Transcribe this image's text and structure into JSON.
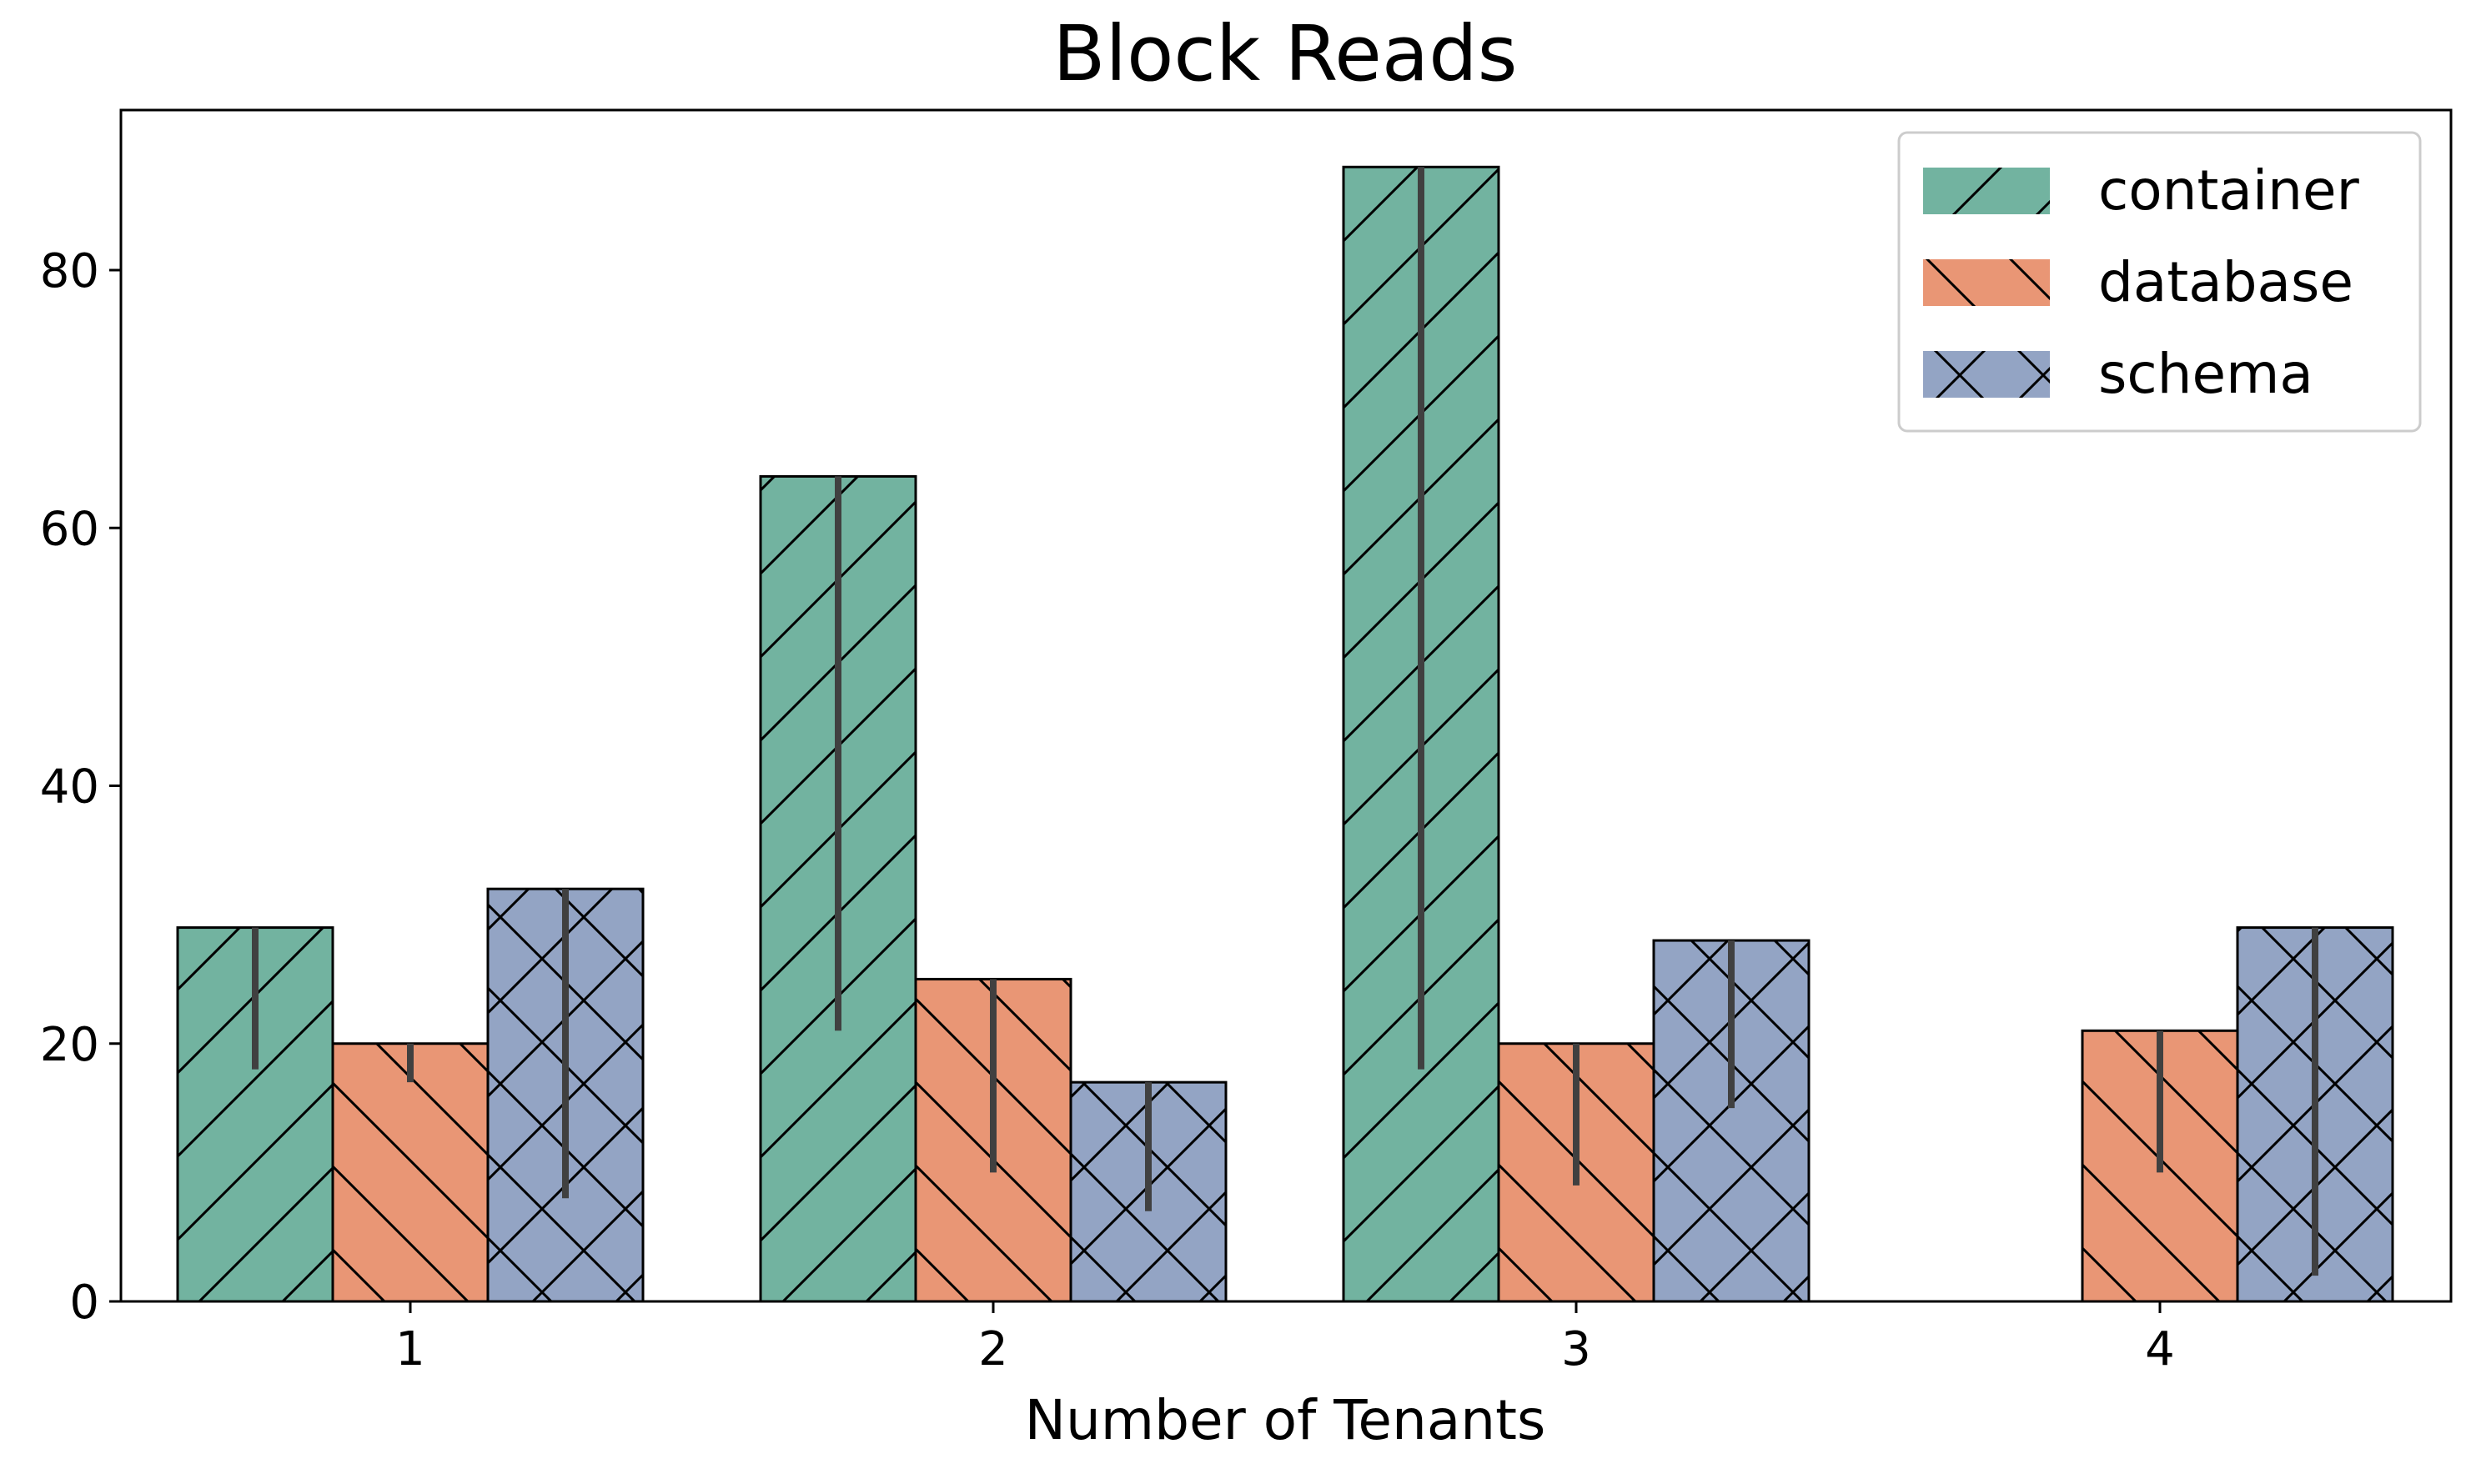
{
  "chart_data": {
    "type": "bar",
    "title": "Block Reads",
    "xlabel": "Number of Tenants",
    "ylabel": "",
    "categories": [
      "1",
      "2",
      "3",
      "4"
    ],
    "ylim": [
      0,
      92
    ],
    "yticks": [
      0,
      20,
      40,
      60,
      80
    ],
    "grid": false,
    "legend_position": "top-right",
    "series": [
      {
        "name": "container",
        "color": "#72b3a0",
        "hatch": "forward-diagonal",
        "values": [
          29,
          64,
          88,
          null
        ],
        "error_low": [
          18,
          21,
          18,
          null
        ],
        "error_high": [
          29,
          64,
          88,
          null
        ]
      },
      {
        "name": "database",
        "color": "#e99675",
        "hatch": "back-diagonal",
        "values": [
          20,
          25,
          20,
          21
        ],
        "error_low": [
          17,
          10,
          9,
          10
        ],
        "error_high": [
          20,
          25,
          20,
          21
        ]
      },
      {
        "name": "schema",
        "color": "#93a4c4",
        "hatch": "cross",
        "values": [
          32,
          17,
          28,
          29
        ],
        "error_low": [
          8,
          7,
          15,
          2
        ],
        "error_high": [
          32,
          17,
          28,
          29
        ]
      }
    ]
  }
}
